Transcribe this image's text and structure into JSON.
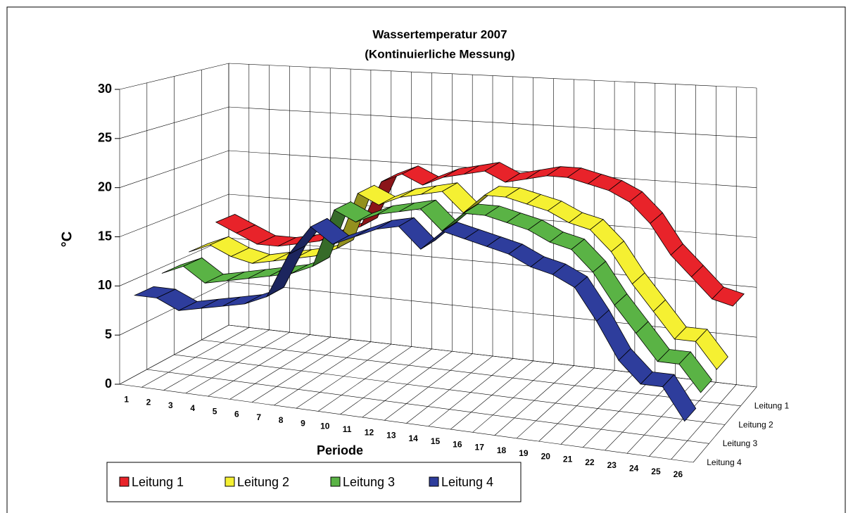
{
  "chart_data": {
    "type": "line3d",
    "title": "Wassertemperatur 2007",
    "subtitle": "(Kontinuierliche Messung)",
    "x_label": "Periode",
    "y_label": "°C",
    "categories": [
      "1",
      "2",
      "3",
      "4",
      "5",
      "6",
      "7",
      "8",
      "9",
      "10",
      "11",
      "12",
      "13",
      "14",
      "15",
      "16",
      "17",
      "18",
      "19",
      "20",
      "21",
      "22",
      "23",
      "24",
      "25",
      "26"
    ],
    "ylim": [
      0,
      30
    ],
    "yticks": [
      0,
      5,
      10,
      15,
      20,
      25,
      30
    ],
    "grid": true,
    "legend": "bottom",
    "series": [
      {
        "name": "Leitung 1",
        "color": "#e8232a",
        "values": [
          13,
          12,
          11,
          11,
          11.5,
          12,
          13,
          14,
          19,
          20,
          19,
          20,
          20.5,
          21,
          20,
          20.5,
          21,
          21,
          20.5,
          20,
          19,
          17,
          14,
          12,
          10,
          9.5
        ]
      },
      {
        "name": "Leitung 2",
        "color": "#f5f032",
        "values": [
          11,
          12,
          11,
          10.5,
          11,
          11.5,
          12,
          13,
          19,
          18,
          19,
          19.5,
          20,
          18,
          20,
          20,
          19.5,
          19,
          18,
          17.5,
          15.5,
          12.5,
          10,
          7.5,
          7.5,
          5
        ]
      },
      {
        "name": "Leitung 3",
        "color": "#5ab345",
        "values": [
          10,
          11,
          9.5,
          10,
          10.5,
          11,
          11.5,
          12.5,
          18.5,
          17.5,
          18.5,
          19,
          19.5,
          17.5,
          19.5,
          19.5,
          19,
          18.5,
          17.5,
          17,
          15,
          12,
          9.5,
          7,
          7,
          4.5
        ]
      },
      {
        "name": "Leitung 4",
        "color": "#2e3d9c",
        "values": [
          9,
          9,
          8,
          8.5,
          9,
          9.5,
          10.5,
          15,
          18,
          16.5,
          17.5,
          18.5,
          19,
          17,
          19,
          18.5,
          18,
          17.5,
          16.5,
          16,
          15,
          12,
          8.5,
          6.5,
          6.5,
          3.5
        ]
      }
    ]
  }
}
